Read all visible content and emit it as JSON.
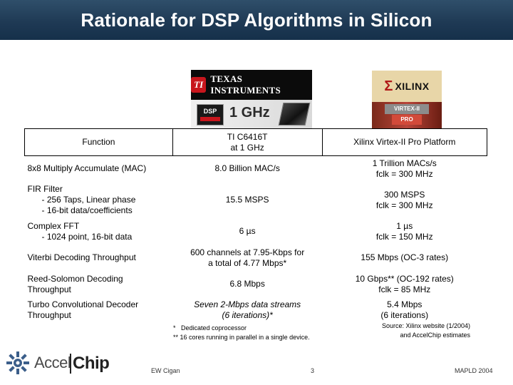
{
  "title": "Rationale for DSP Algorithms in Silicon",
  "logos": {
    "ti": {
      "name": "TEXAS INSTRUMENTS",
      "emblem": "TI",
      "chip_badge": "DSP",
      "speed": "1 GHz"
    },
    "xilinx": {
      "name": "XILINX",
      "mark": "Σ",
      "product": "VIRTEX-II",
      "subproduct": "PRO"
    }
  },
  "table": {
    "headers": {
      "function": "Function",
      "ti": "TI C6416T\nat 1 GHz",
      "xilinx": "Xilinx Virtex-II Pro Platform"
    },
    "rows": [
      {
        "function": "8x8 Multiply Accumulate (MAC)",
        "ti": "8.0 Billion MAC/s",
        "xilinx": "1 Trillion MACs/s\nfclk = 300 MHz",
        "ti_italic": false
      },
      {
        "function": "FIR Filter\n      - 256 Taps, Linear phase\n      - 16-bit data/coefficients",
        "ti": "15.5 MSPS",
        "xilinx": "300 MSPS\nfclk = 300 MHz",
        "ti_italic": false
      },
      {
        "function": "Complex FFT\n      - 1024 point, 16-bit data",
        "ti": "6 µs",
        "xilinx": "1 µs\nfclk = 150 MHz",
        "ti_italic": false
      },
      {
        "function": "Viterbi Decoding Throughput",
        "ti": "600 channels at 7.95-Kbps for\na total of 4.77 Mbps*",
        "xilinx": "155 Mbps (OC-3 rates)",
        "ti_italic": false
      },
      {
        "function": "Reed-Solomon Decoding\nThroughput",
        "ti": "6.8 Mbps",
        "xilinx": "10 Gbps** (OC-192 rates)\nfclk = 85 MHz",
        "ti_italic": false
      },
      {
        "function": "Turbo Convolutional Decoder\nThroughput",
        "ti": "Seven 2-Mbps data streams\n(6 iterations)*",
        "xilinx": "5.4 Mbps\n(6 iterations)",
        "ti_italic": true
      }
    ]
  },
  "footnotes": [
    "*   Dedicated coprocessor",
    "** 16 cores running in parallel in a single device."
  ],
  "source": "Source: Xilinx website (1/2004)\nand AccelChip estimates",
  "footer": {
    "logo_left": "Accel",
    "logo_right": "Chip",
    "author": "EW Cigan",
    "page": "3",
    "conference": "MAPLD 2004"
  },
  "colors": {
    "title_bar": "#1f3a55",
    "title_text": "#ffffff",
    "ti_red": "#c8161d",
    "xilinx_red": "#b01818"
  }
}
